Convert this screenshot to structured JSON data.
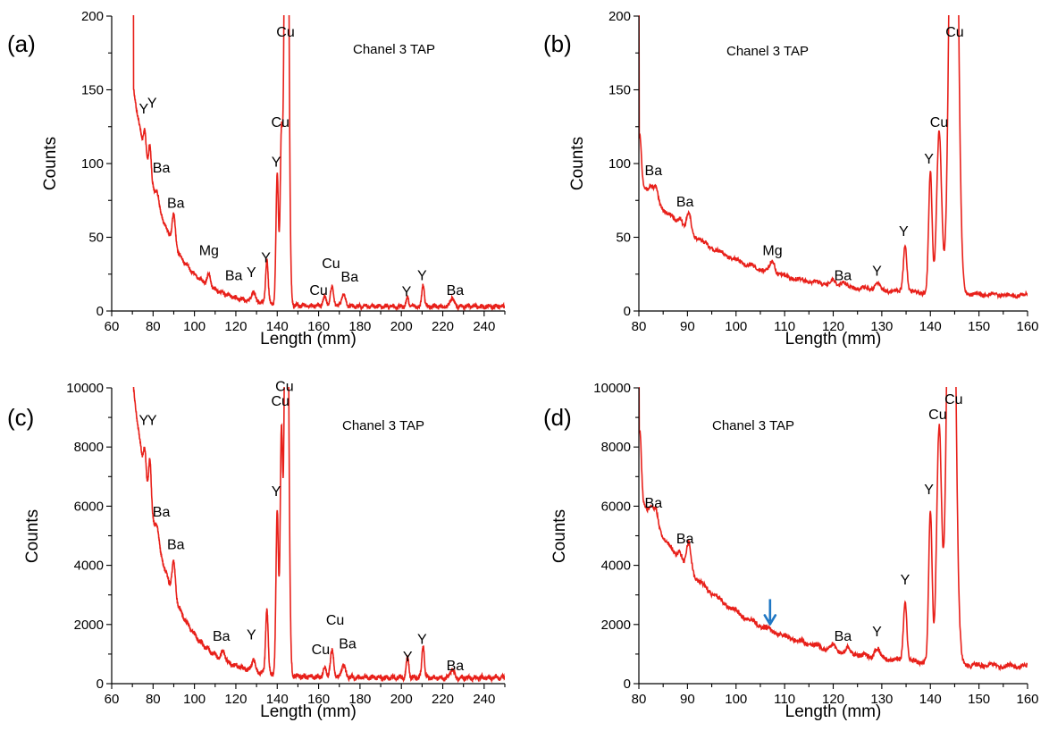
{
  "chart_data": [
    {
      "type": "line",
      "panel_label": "(a)",
      "annotation": "Chanel 3 TAP",
      "xlabel": "Length (mm)",
      "ylabel": "Counts",
      "xlim": [
        60,
        250
      ],
      "ylim": [
        0,
        200
      ],
      "xticks": [
        60,
        80,
        100,
        120,
        140,
        160,
        180,
        200,
        220,
        240
      ],
      "yticks": [
        0,
        50,
        100,
        150,
        200
      ],
      "line_color": "#e8201a",
      "grid": false,
      "series": [
        {
          "baseline": {
            "x0": 70.5,
            "a": 148,
            "tau": 15.5,
            "c": 3
          },
          "peaks": [
            {
              "x": 76,
              "h": 16,
              "w": 0.6
            },
            {
              "x": 78.5,
              "h": 22,
              "w": 0.6
            },
            {
              "x": 82,
              "h": 8,
              "w": 0.7
            },
            {
              "x": 90,
              "h": 20,
              "w": 0.8
            },
            {
              "x": 107,
              "h": 8,
              "w": 0.8
            },
            {
              "x": 128.5,
              "h": 7,
              "w": 0.8
            },
            {
              "x": 135,
              "h": 30,
              "w": 0.6
            },
            {
              "x": 140,
              "h": 88,
              "w": 0.6
            },
            {
              "x": 142,
              "h": 110,
              "w": 0.6
            },
            {
              "x": 144.5,
              "h": 500,
              "w": 0.9
            },
            {
              "x": 163,
              "h": 6,
              "w": 0.8
            },
            {
              "x": 166.5,
              "h": 13,
              "w": 0.8
            },
            {
              "x": 172,
              "h": 8,
              "w": 1.0
            },
            {
              "x": 203,
              "h": 6,
              "w": 0.6
            },
            {
              "x": 210.5,
              "h": 15,
              "w": 0.6
            },
            {
              "x": 224.5,
              "h": 6,
              "w": 0.9
            }
          ],
          "noise": 1.2
        }
      ],
      "peak_labels": [
        {
          "text": "Y",
          "x": 75.5,
          "y": 134
        },
        {
          "text": "Y",
          "x": 79.5,
          "y": 138
        },
        {
          "text": "Ba",
          "x": 84,
          "y": 94
        },
        {
          "text": "Ba",
          "x": 91,
          "y": 70
        },
        {
          "text": "Mg",
          "x": 107,
          "y": 38
        },
        {
          "text": "Ba",
          "x": 119,
          "y": 21
        },
        {
          "text": "Y",
          "x": 127.5,
          "y": 23
        },
        {
          "text": "Y",
          "x": 134.5,
          "y": 33
        },
        {
          "text": "Y",
          "x": 139.5,
          "y": 98
        },
        {
          "text": "Cu",
          "x": 141.5,
          "y": 125
        },
        {
          "text": "Cu",
          "x": 144,
          "y": 186
        },
        {
          "text": "Cu",
          "x": 160,
          "y": 11
        },
        {
          "text": "Cu",
          "x": 166,
          "y": 29
        },
        {
          "text": "Ba",
          "x": 175,
          "y": 20
        },
        {
          "text": "Y",
          "x": 202.5,
          "y": 10
        },
        {
          "text": "Y",
          "x": 210,
          "y": 21
        },
        {
          "text": "Ba",
          "x": 226,
          "y": 11
        }
      ]
    },
    {
      "type": "line",
      "panel_label": "(b)",
      "annotation": "Chanel 3 TAP",
      "xlabel": "Length (mm)",
      "ylabel": "Counts",
      "xlim": [
        80,
        160
      ],
      "ylim": [
        0,
        200
      ],
      "xticks": [
        80,
        90,
        100,
        110,
        120,
        130,
        140,
        150,
        160
      ],
      "yticks": [
        0,
        50,
        100,
        150,
        200
      ],
      "line_color": "#e8201a",
      "grid": false,
      "series": [
        {
          "baseline": {
            "x0": 80,
            "a": 80,
            "tau": 17,
            "c": 10
          },
          "peaks": [
            {
              "x": 80.2,
              "h": 30,
              "w": 0.3
            },
            {
              "x": 82.5,
              "h": 6,
              "w": 0.4
            },
            {
              "x": 83.5,
              "h": 8,
              "w": 0.4
            },
            {
              "x": 88.5,
              "h": 5,
              "w": 0.4
            },
            {
              "x": 90.3,
              "h": 12,
              "w": 0.45
            },
            {
              "x": 107.5,
              "h": 8,
              "w": 0.5
            },
            {
              "x": 120,
              "h": 3,
              "w": 0.5
            },
            {
              "x": 122,
              "h": 3,
              "w": 0.5
            },
            {
              "x": 129,
              "h": 5,
              "w": 0.5
            },
            {
              "x": 134.8,
              "h": 32,
              "w": 0.35
            },
            {
              "x": 140,
              "h": 82,
              "w": 0.35
            },
            {
              "x": 141.8,
              "h": 110,
              "w": 0.5
            },
            {
              "x": 144.8,
              "h": 480,
              "w": 0.75
            }
          ],
          "noise": 1.3
        }
      ],
      "peak_labels": [
        {
          "text": "Ba",
          "x": 83,
          "y": 92
        },
        {
          "text": "Ba",
          "x": 89.5,
          "y": 71
        },
        {
          "text": "Mg",
          "x": 107.5,
          "y": 38
        },
        {
          "text": "Ba",
          "x": 122,
          "y": 21
        },
        {
          "text": "Y",
          "x": 129,
          "y": 24
        },
        {
          "text": "Y",
          "x": 134.5,
          "y": 51
        },
        {
          "text": "Y",
          "x": 139.7,
          "y": 100
        },
        {
          "text": "Cu",
          "x": 141.8,
          "y": 125
        },
        {
          "text": "Cu",
          "x": 145,
          "y": 186
        }
      ]
    },
    {
      "type": "line",
      "panel_label": "(c)",
      "annotation": "Chanel 3 TAP",
      "xlabel": "Length (mm)",
      "ylabel": "Counts",
      "xlim": [
        60,
        250
      ],
      "ylim": [
        0,
        10000
      ],
      "xticks": [
        60,
        80,
        100,
        120,
        140,
        160,
        180,
        200,
        220,
        240
      ],
      "yticks": [
        0,
        2000,
        4000,
        6000,
        8000,
        10000
      ],
      "line_color": "#e8201a",
      "grid": false,
      "series": [
        {
          "baseline": {
            "x0": 70.5,
            "a": 9800,
            "tau": 15.5,
            "c": 200
          },
          "peaks": [
            {
              "x": 76,
              "h": 900,
              "w": 0.6
            },
            {
              "x": 78.5,
              "h": 1600,
              "w": 0.6
            },
            {
              "x": 82,
              "h": 500,
              "w": 0.7
            },
            {
              "x": 90,
              "h": 1100,
              "w": 0.8
            },
            {
              "x": 114,
              "h": 300,
              "w": 0.9
            },
            {
              "x": 128.5,
              "h": 400,
              "w": 0.8
            },
            {
              "x": 135,
              "h": 2200,
              "w": 0.6
            },
            {
              "x": 140,
              "h": 5500,
              "w": 0.6
            },
            {
              "x": 142,
              "h": 8000,
              "w": 0.6
            },
            {
              "x": 144.5,
              "h": 20000,
              "w": 0.9
            },
            {
              "x": 163,
              "h": 300,
              "w": 0.8
            },
            {
              "x": 166.5,
              "h": 900,
              "w": 0.8
            },
            {
              "x": 172,
              "h": 400,
              "w": 1.0
            },
            {
              "x": 203,
              "h": 700,
              "w": 0.6
            },
            {
              "x": 210.5,
              "h": 1100,
              "w": 0.6
            },
            {
              "x": 224.5,
              "h": 300,
              "w": 0.9
            }
          ],
          "noise": 70
        }
      ],
      "peak_labels": [
        {
          "text": "Y",
          "x": 75.5,
          "y": 8750
        },
        {
          "text": "Y",
          "x": 79.5,
          "y": 8750
        },
        {
          "text": "Ba",
          "x": 84,
          "y": 5650
        },
        {
          "text": "Ba",
          "x": 91,
          "y": 4550
        },
        {
          "text": "Ba",
          "x": 113,
          "y": 1450
        },
        {
          "text": "Y",
          "x": 127.5,
          "y": 1500
        },
        {
          "text": "Y",
          "x": 139.5,
          "y": 6350
        },
        {
          "text": "Cu",
          "x": 141.5,
          "y": 9400
        },
        {
          "text": "Cu",
          "x": 143.5,
          "y": 9900
        },
        {
          "text": "Cu",
          "x": 161,
          "y": 1000
        },
        {
          "text": "Cu",
          "x": 168,
          "y": 2000
        },
        {
          "text": "Ba",
          "x": 174,
          "y": 1200
        },
        {
          "text": "Y",
          "x": 203,
          "y": 750
        },
        {
          "text": "Y",
          "x": 210,
          "y": 1350
        },
        {
          "text": "Ba",
          "x": 226,
          "y": 450
        }
      ]
    },
    {
      "type": "line",
      "panel_label": "(d)",
      "annotation": "Chanel 3 TAP",
      "xlabel": "Length (mm)",
      "ylabel": "Counts",
      "xlim": [
        80,
        160
      ],
      "ylim": [
        0,
        10000
      ],
      "xticks": [
        80,
        90,
        100,
        110,
        120,
        130,
        140,
        150,
        160
      ],
      "yticks": [
        0,
        2000,
        4000,
        6000,
        8000,
        10000
      ],
      "line_color": "#e8201a",
      "arrow_color": "#1f77c4",
      "arrow_x": 107,
      "grid": false,
      "series": [
        {
          "baseline": {
            "x0": 80,
            "a": 5900,
            "tau": 18,
            "c": 500
          },
          "peaks": [
            {
              "x": 80.2,
              "h": 2200,
              "w": 0.3
            },
            {
              "x": 82.5,
              "h": 400,
              "w": 0.4
            },
            {
              "x": 83.5,
              "h": 500,
              "w": 0.4
            },
            {
              "x": 88.5,
              "h": 300,
              "w": 0.4
            },
            {
              "x": 90.3,
              "h": 900,
              "w": 0.45
            },
            {
              "x": 120,
              "h": 150,
              "w": 0.5
            },
            {
              "x": 123,
              "h": 150,
              "w": 0.5
            },
            {
              "x": 129,
              "h": 300,
              "w": 0.5
            },
            {
              "x": 134.8,
              "h": 2000,
              "w": 0.35
            },
            {
              "x": 140,
              "h": 5100,
              "w": 0.35
            },
            {
              "x": 141.8,
              "h": 8000,
              "w": 0.5
            },
            {
              "x": 144.3,
              "h": 22000,
              "w": 0.75
            }
          ],
          "noise": 80
        }
      ],
      "peak_labels": [
        {
          "text": "Ba",
          "x": 83,
          "y": 5950
        },
        {
          "text": "Ba",
          "x": 89.5,
          "y": 4750
        },
        {
          "text": "Ba",
          "x": 122,
          "y": 1450
        },
        {
          "text": "Y",
          "x": 129,
          "y": 1600
        },
        {
          "text": "Y",
          "x": 134.8,
          "y": 3350
        },
        {
          "text": "Y",
          "x": 139.7,
          "y": 6400
        },
        {
          "text": "Cu",
          "x": 141.5,
          "y": 8950
        },
        {
          "text": "Cu",
          "x": 144.8,
          "y": 9450
        }
      ]
    }
  ]
}
